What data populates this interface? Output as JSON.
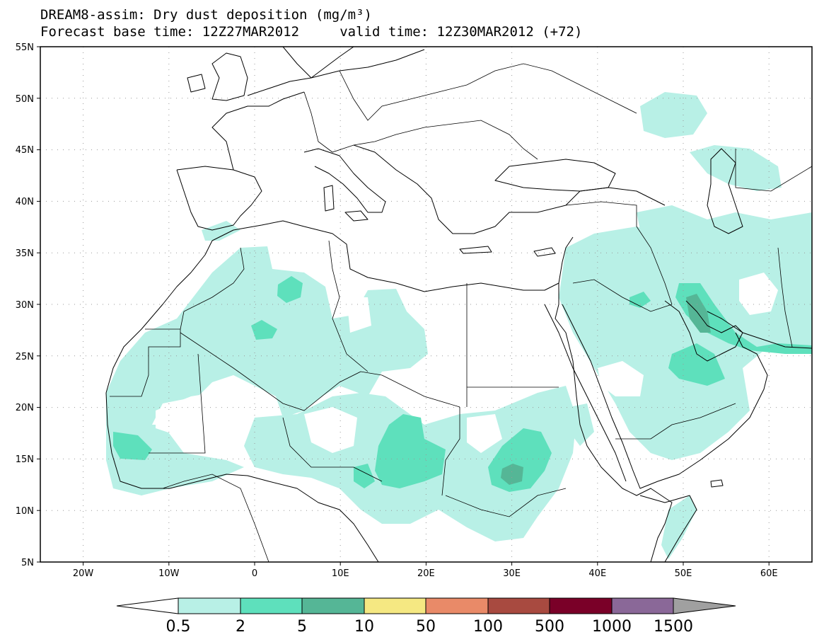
{
  "header": {
    "title_line1": "DREAM8-assim: Dry dust deposition (mg/m³)",
    "title_line2": "Forecast base time: 12Z27MAR2012     valid time: 12Z30MAR2012 (+72)"
  },
  "map": {
    "projection": "lat-lon",
    "lon_range": [
      -25,
      65
    ],
    "lat_range": [
      5,
      55
    ],
    "grid": "dotted",
    "lat_ticks": [
      "55N",
      "50N",
      "45N",
      "40N",
      "35N",
      "30N",
      "25N",
      "20N",
      "15N",
      "10N",
      "5N"
    ],
    "lon_ticks": [
      "20W",
      "10W",
      "0",
      "10E",
      "20E",
      "30E",
      "40E",
      "50E",
      "60E"
    ]
  },
  "colorbar": {
    "labels": [
      "0.5",
      "2",
      "5",
      "10",
      "50",
      "100",
      "500",
      "1000",
      "1500"
    ],
    "colors": [
      "#b8f0e6",
      "#5ee0bc",
      "#55b696",
      "#f5e882",
      "#e98a68",
      "#a84a40",
      "#7a0028",
      "#8a6898",
      "#a0a0a0"
    ],
    "under_color": "#ffffff"
  }
}
